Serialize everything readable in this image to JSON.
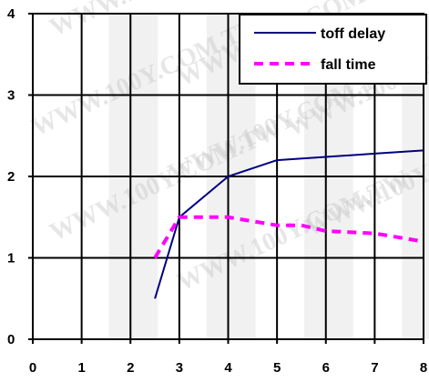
{
  "chart_data": {
    "type": "line",
    "title": "",
    "xlabel": "",
    "ylabel": "",
    "xlim": [
      0,
      8
    ],
    "ylim": [
      0,
      4
    ],
    "x_ticks": [
      "0",
      "1",
      "2",
      "3",
      "4",
      "5",
      "6",
      "7",
      "8"
    ],
    "y_ticks": [
      "0",
      "1",
      "2",
      "3",
      "4"
    ],
    "grid": true,
    "legend_position": "top-right",
    "series": [
      {
        "name": "toff delay",
        "color": "#000080",
        "style": "solid",
        "points": [
          [
            2.5,
            0.5
          ],
          [
            3,
            1.5
          ],
          [
            4,
            2.0
          ],
          [
            5,
            2.2
          ],
          [
            6,
            2.24
          ],
          [
            7,
            2.28
          ],
          [
            8,
            2.32
          ]
        ]
      },
      {
        "name": "fall time",
        "color": "#ff00ff",
        "style": "dashed",
        "points": [
          [
            2.5,
            1.0
          ],
          [
            3,
            1.5
          ],
          [
            4,
            1.5
          ],
          [
            5,
            1.4
          ],
          [
            5.5,
            1.4
          ],
          [
            6,
            1.33
          ],
          [
            7,
            1.3
          ],
          [
            8,
            1.2
          ]
        ]
      }
    ]
  },
  "watermark": {
    "text": "WWW.100Y.COM.TW"
  }
}
